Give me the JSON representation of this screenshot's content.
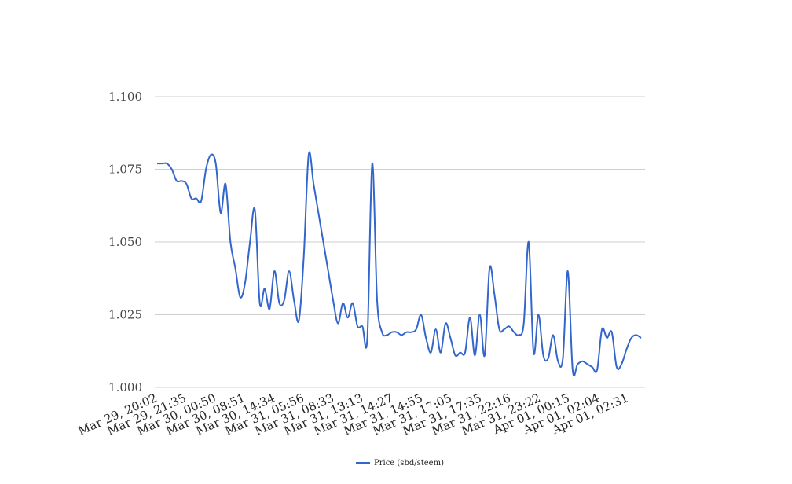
{
  "chart_data": {
    "type": "line",
    "title": "",
    "xlabel": "",
    "ylabel": "",
    "ylim": [
      1.0,
      1.1
    ],
    "y_ticks": [
      "1.000",
      "1.025",
      "1.050",
      "1.075",
      "1.100"
    ],
    "x_ticks": [
      "Mar 29, 20:02",
      "Mar 29, 21:35",
      "Mar 30, 00:50",
      "Mar 30, 08:51",
      "Mar 30, 14:34",
      "Mar 31, 05:56",
      "Mar 31, 08:33",
      "Mar 31, 13:13",
      "Mar 31, 14:27",
      "Mar 31, 14:55",
      "Mar 31, 17:05",
      "Mar 31, 17:35",
      "Mar 31, 22:16",
      "Mar 31, 23:22",
      "Apr 01, 00:15",
      "Apr 01, 02:04",
      "Apr 01, 02:31"
    ],
    "grid": true,
    "legend_position": "bottom-center",
    "series": [
      {
        "name": "Price (sbd/steem)",
        "color": "#3366cc",
        "values": [
          1.077,
          1.077,
          1.077,
          1.075,
          1.071,
          1.071,
          1.07,
          1.065,
          1.065,
          1.064,
          1.075,
          1.08,
          1.077,
          1.06,
          1.07,
          1.05,
          1.041,
          1.031,
          1.036,
          1.05,
          1.061,
          1.029,
          1.034,
          1.027,
          1.04,
          1.029,
          1.03,
          1.04,
          1.03,
          1.023,
          1.045,
          1.08,
          1.07,
          1.06,
          1.05,
          1.04,
          1.03,
          1.022,
          1.029,
          1.024,
          1.029,
          1.021,
          1.021,
          1.017,
          1.077,
          1.03,
          1.019,
          1.018,
          1.019,
          1.019,
          1.018,
          1.019,
          1.019,
          1.02,
          1.025,
          1.017,
          1.012,
          1.02,
          1.012,
          1.022,
          1.017,
          1.011,
          1.012,
          1.012,
          1.024,
          1.011,
          1.025,
          1.011,
          1.041,
          1.032,
          1.02,
          1.02,
          1.021,
          1.019,
          1.018,
          1.022,
          1.05,
          1.012,
          1.025,
          1.011,
          1.01,
          1.018,
          1.009,
          1.01,
          1.04,
          1.006,
          1.008,
          1.009,
          1.008,
          1.007,
          1.006,
          1.02,
          1.017,
          1.019,
          1.007,
          1.008,
          1.013,
          1.017,
          1.018,
          1.017
        ]
      }
    ]
  }
}
